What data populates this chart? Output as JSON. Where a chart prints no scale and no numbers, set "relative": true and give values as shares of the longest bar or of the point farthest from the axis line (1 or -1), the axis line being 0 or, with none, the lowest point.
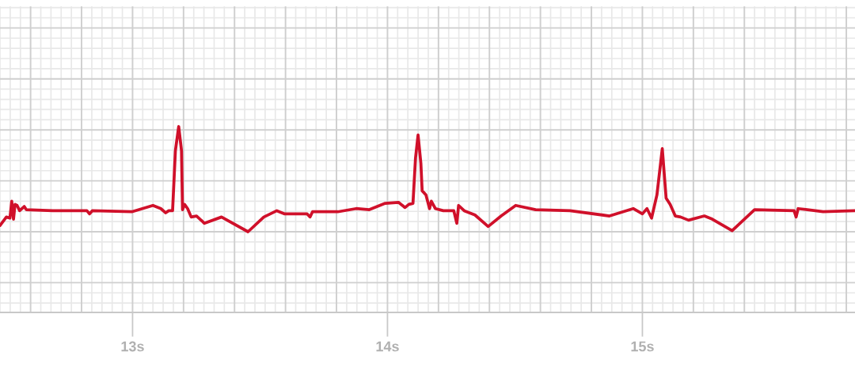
{
  "chart_data": {
    "type": "line",
    "relative": true,
    "grid": true,
    "tick_labels": "x",
    "marker": "none",
    "line_style": "solid",
    "xlim": [
      12.48,
      15.834
    ],
    "xticks": [
      {
        "value": 13,
        "label": "13s"
      },
      {
        "value": 14,
        "label": "14s"
      },
      {
        "value": 15,
        "label": "15s"
      }
    ],
    "series": [
      {
        "color": "#d0102a",
        "x": [
          12.48,
          12.505,
          12.519,
          12.526,
          12.533,
          12.539,
          12.547,
          12.557,
          12.575,
          12.583,
          12.687,
          12.821,
          12.831,
          12.842,
          12.997,
          13.08,
          13.111,
          13.13,
          13.142,
          13.157,
          13.168,
          13.181,
          13.192,
          13.196,
          13.204,
          13.216,
          13.23,
          13.251,
          13.282,
          13.349,
          13.453,
          13.515,
          13.566,
          13.597,
          13.685,
          13.696,
          13.706,
          13.805,
          13.877,
          13.929,
          13.991,
          14.043,
          14.069,
          14.084,
          14.1,
          14.11,
          14.12,
          14.131,
          14.136,
          14.151,
          14.165,
          14.172,
          14.188,
          14.219,
          14.26,
          14.272,
          14.279,
          14.301,
          14.343,
          14.395,
          14.446,
          14.503,
          14.581,
          14.716,
          14.871,
          14.964,
          15.0,
          15.018,
          15.036,
          15.057,
          15.078,
          15.093,
          15.109,
          15.129,
          15.15,
          15.181,
          15.243,
          15.274,
          15.352,
          15.44,
          15.595,
          15.603,
          15.611,
          15.709,
          15.833
        ],
        "values": [
          0.06,
          0.14,
          0.13,
          0.29,
          0.12,
          0.26,
          0.25,
          0.2,
          0.24,
          0.21,
          0.2,
          0.2,
          0.17,
          0.2,
          0.19,
          0.25,
          0.22,
          0.18,
          0.2,
          0.2,
          0.77,
          1.0,
          0.77,
          0.21,
          0.26,
          0.22,
          0.14,
          0.15,
          0.08,
          0.14,
          0.0,
          0.14,
          0.2,
          0.17,
          0.17,
          0.14,
          0.19,
          0.19,
          0.22,
          0.21,
          0.27,
          0.28,
          0.23,
          0.26,
          0.27,
          0.7,
          0.92,
          0.65,
          0.39,
          0.35,
          0.22,
          0.29,
          0.22,
          0.2,
          0.2,
          0.08,
          0.25,
          0.2,
          0.16,
          0.05,
          0.15,
          0.25,
          0.21,
          0.2,
          0.15,
          0.22,
          0.17,
          0.22,
          0.13,
          0.35,
          0.79,
          0.32,
          0.26,
          0.15,
          0.14,
          0.11,
          0.15,
          0.12,
          0.01,
          0.21,
          0.2,
          0.14,
          0.22,
          0.19,
          0.2
        ]
      }
    ]
  }
}
